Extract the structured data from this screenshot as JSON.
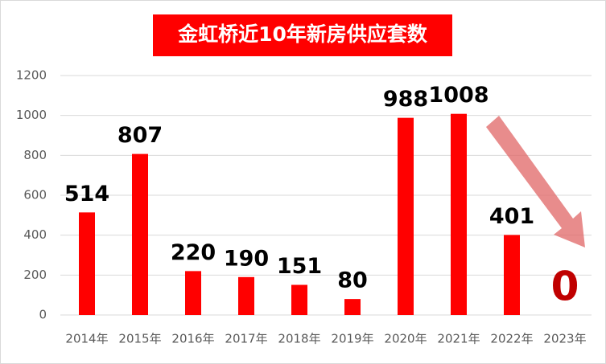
{
  "chart_data": {
    "type": "bar",
    "title": "金虹桥近10年新房供应套数",
    "categories": [
      "2014年",
      "2015年",
      "2016年",
      "2017年",
      "2018年",
      "2019年",
      "2020年",
      "2021年",
      "2022年",
      "2023年"
    ],
    "values": [
      514,
      807,
      220,
      190,
      151,
      80,
      988,
      1008,
      401,
      0
    ],
    "color": "#ff0000",
    "ylim": [
      0,
      1200
    ],
    "yticks": [
      0,
      200,
      400,
      600,
      800,
      1000,
      1200
    ],
    "grid": true
  }
}
